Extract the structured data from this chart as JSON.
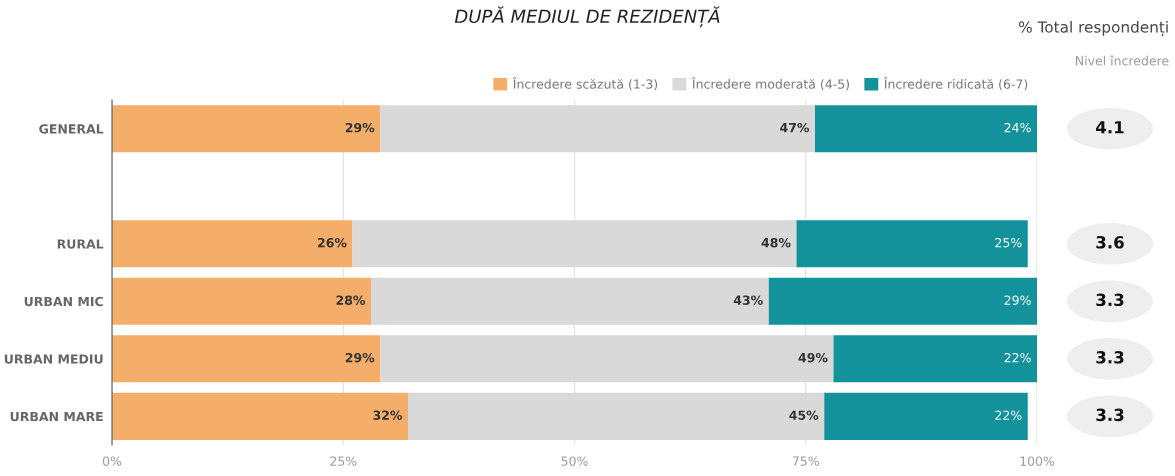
{
  "chart_data": {
    "type": "bar",
    "orientation": "horizontal",
    "stacked": true,
    "title": "DUPĂ MEDIUL DE REZIDENȚĂ",
    "categories": [
      "GENERAL",
      null,
      "RURAL",
      "URBAN MIC",
      "URBAN MEDIU",
      "URBAN MARE"
    ],
    "series": [
      {
        "name": "Încredere scăzută (1-3)",
        "color": "#f4ae6a",
        "values": [
          29,
          null,
          26,
          28,
          29,
          32
        ],
        "value_labels": [
          "29%",
          null,
          "26%",
          "28%",
          "29%",
          "32%"
        ]
      },
      {
        "name": "Încredere moderată (4-5)",
        "color": "#d9d9d9",
        "values": [
          47,
          null,
          48,
          43,
          49,
          45
        ],
        "value_labels": [
          "47%",
          null,
          "48%",
          "43%",
          "49%",
          "45%"
        ]
      },
      {
        "name": "Încredere ridicată (6-7)",
        "color": "#13929c",
        "values": [
          24,
          null,
          25,
          29,
          22,
          22
        ],
        "value_labels": [
          "24%",
          null,
          "25%",
          "29%",
          "22%",
          "22%"
        ]
      }
    ],
    "xlim": [
      0,
      100
    ],
    "xticks": [
      {
        "value": 0,
        "label": "0%"
      },
      {
        "value": 25,
        "label": "25%"
      },
      {
        "value": 50,
        "label": "50%"
      },
      {
        "value": 75,
        "label": "75%"
      },
      {
        "value": 100,
        "label": "100%"
      }
    ],
    "grid": "x",
    "legend": "top right",
    "annotations": [
      "% Total respondenți",
      "Nivel încredere",
      "4.1",
      "3.6",
      "3.3",
      "3.3",
      "3.3"
    ]
  }
}
